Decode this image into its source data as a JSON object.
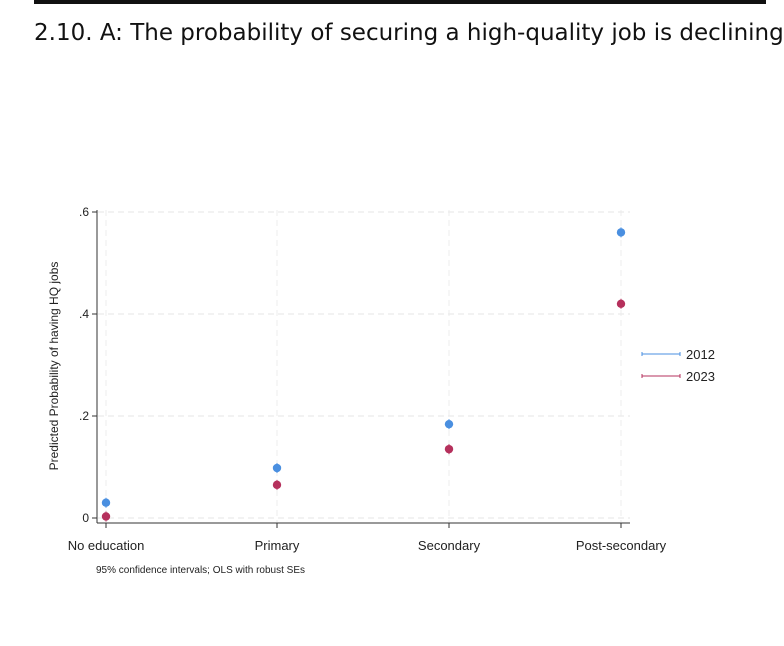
{
  "title": "2.10. A: The probability of securing a high-quality job is declining",
  "chart_data": {
    "type": "scatter",
    "title": "",
    "xlabel": "",
    "ylabel": "Predicted Probability of having HQ jobs",
    "categories": [
      "No education",
      "Primary",
      "Secondary",
      "Post-secondary"
    ],
    "ylim": [
      0,
      0.6
    ],
    "y_ticks": [
      0,
      0.2,
      0.4,
      0.6
    ],
    "y_tick_labels": [
      "0",
      ".2",
      ".4",
      ".6"
    ],
    "grid": true,
    "legend_position": "right",
    "note": "95% confidence intervals; OLS with robust SEs",
    "series": [
      {
        "name": "2012",
        "color": "#4a8fe0",
        "values": [
          0.03,
          0.098,
          0.184,
          0.56
        ]
      },
      {
        "name": "2023",
        "color": "#b5305c",
        "values": [
          0.003,
          0.065,
          0.135,
          0.42
        ]
      }
    ]
  }
}
